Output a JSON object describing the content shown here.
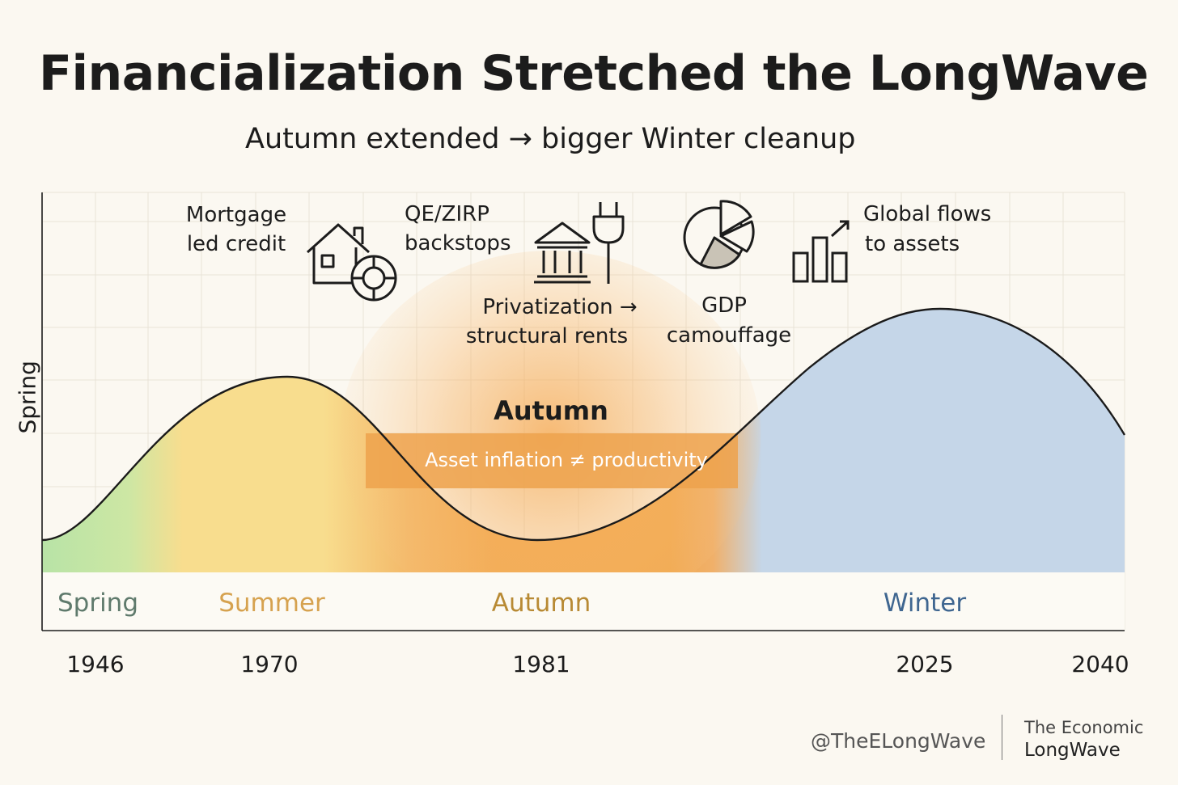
{
  "header": {
    "title": "Financialization Stretched the LongWave",
    "subtitle": "Autumn extended → bigger Winter cleanup"
  },
  "y_axis_label": "Spring",
  "annotations": {
    "mortgage": [
      "Mortgage",
      "led credit"
    ],
    "qe": [
      "QE/ZIRP",
      "backstops"
    ],
    "privatization": [
      "Privatization →",
      "structural rents"
    ],
    "gdp": [
      "GDP",
      "camouffage"
    ],
    "global": [
      "Global flows",
      "to assets"
    ],
    "autumn_label": "Autumn",
    "band_label": "Asset inflation ≠ productivity"
  },
  "icons": [
    "house-icon",
    "lifebuoy-icon",
    "bank-icon",
    "plug-icon",
    "pie-chart-icon",
    "bar-chart-up-icon"
  ],
  "seasons": [
    {
      "label": "Spring",
      "color": "#5f7a6c"
    },
    {
      "label": "Summer",
      "color": "#d6a24f"
    },
    {
      "label": "Autumn",
      "color": "#b88a34"
    },
    {
      "label": "Winter",
      "color": "#3f6690"
    }
  ],
  "years": [
    "1946",
    "1970",
    "1981",
    "2025",
    "2040"
  ],
  "colors": {
    "spring": "#b8e3a6",
    "summer": "#f8dd8e",
    "autumn": "#f1a84e",
    "winter": "#c5d6e8",
    "curve": "#1a1a1a"
  },
  "footer": {
    "handle": "@TheELongWave",
    "brand_line1": "The Economic",
    "brand_line2": "LongWave"
  }
}
